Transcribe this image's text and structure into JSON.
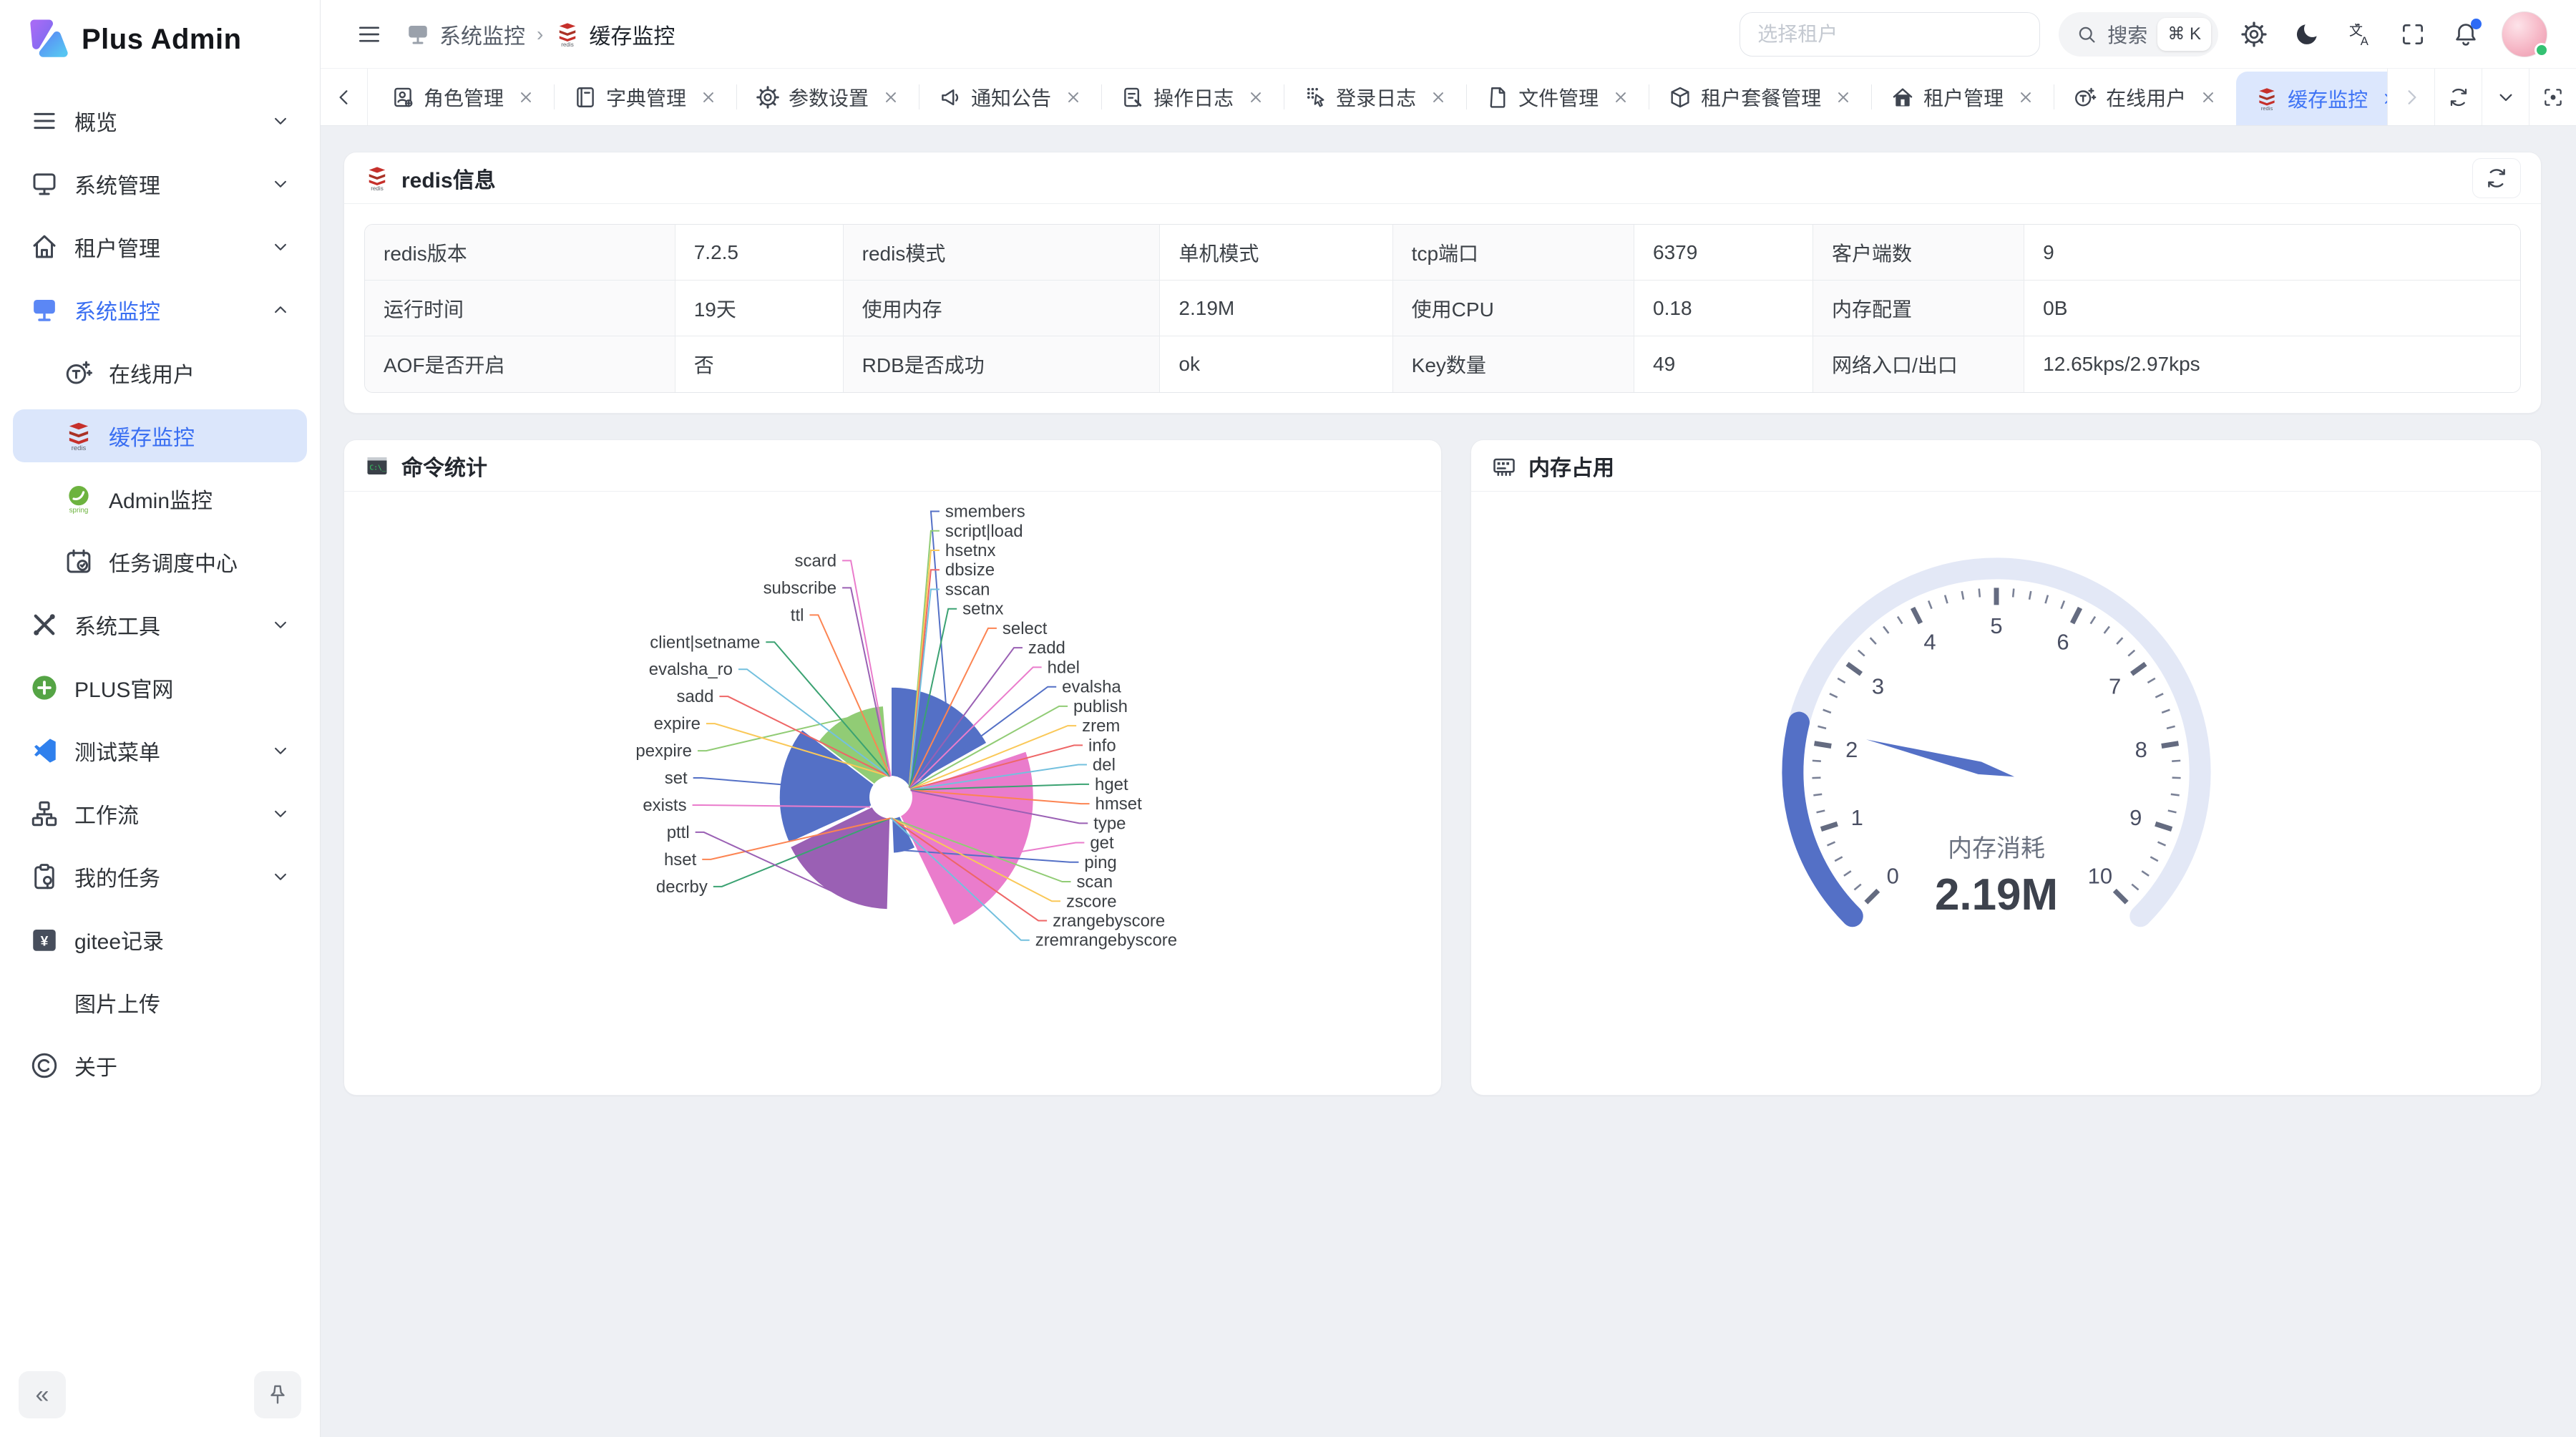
{
  "app": {
    "name": "Plus Admin"
  },
  "sidebar": {
    "logo_title": "Plus Admin",
    "items": [
      {
        "label": "概览",
        "icon": "overview-icon",
        "chevron": "down"
      },
      {
        "label": "系统管理",
        "icon": "monitor-icon",
        "chevron": "down"
      },
      {
        "label": "租户管理",
        "icon": "home-icon",
        "chevron": "down"
      },
      {
        "label": "系统监控",
        "icon": "monitor-blue-icon",
        "chevron": "up",
        "active": true
      },
      {
        "label": "在线用户",
        "icon": "online-user-icon",
        "child": true
      },
      {
        "label": "缓存监控",
        "icon": "redis-icon",
        "child": true,
        "selected": true
      },
      {
        "label": "Admin监控",
        "icon": "spring-icon",
        "child": true
      },
      {
        "label": "任务调度中心",
        "icon": "schedule-icon",
        "child": true
      },
      {
        "label": "系统工具",
        "icon": "tools-icon",
        "chevron": "down"
      },
      {
        "label": "PLUS官网",
        "icon": "plus-site-icon"
      },
      {
        "label": "测试菜单",
        "icon": "vscode-icon",
        "chevron": "down"
      },
      {
        "label": "工作流",
        "icon": "workflow-icon",
        "chevron": "down"
      },
      {
        "label": "我的任务",
        "icon": "my-tasks-icon",
        "chevron": "down"
      },
      {
        "label": "gitee记录",
        "icon": "gitee-icon"
      },
      {
        "label": "图片上传",
        "icon": null
      },
      {
        "label": "关于",
        "icon": "about-icon"
      }
    ],
    "collapse_glyph": "«"
  },
  "header": {
    "breadcrumb": [
      {
        "label": "系统监控",
        "icon": "monitor-gray-icon"
      },
      {
        "label": "缓存监控",
        "icon": "redis-icon"
      }
    ],
    "tenant_placeholder": "选择租户",
    "search_label": "搜索",
    "search_shortcut": "⌘ K"
  },
  "tabbar": {
    "tabs": [
      {
        "label": "角色管理",
        "icon": "role-icon"
      },
      {
        "label": "字典管理",
        "icon": "dict-icon"
      },
      {
        "label": "参数设置",
        "icon": "gear-icon"
      },
      {
        "label": "通知公告",
        "icon": "notice-icon"
      },
      {
        "label": "操作日志",
        "icon": "op-log-icon"
      },
      {
        "label": "登录日志",
        "icon": "login-log-icon"
      },
      {
        "label": "文件管理",
        "icon": "file-icon"
      },
      {
        "label": "租户套餐管理",
        "icon": "package-icon"
      },
      {
        "label": "租户管理",
        "icon": "tenant-icon"
      },
      {
        "label": "在线用户",
        "icon": "online-user-icon"
      },
      {
        "label": "缓存监控",
        "icon": "redis-icon",
        "active": true
      }
    ]
  },
  "redis_info": {
    "title": "redis信息",
    "rows": [
      [
        {
          "label": "redis版本",
          "value": "7.2.5"
        },
        {
          "label": "redis模式",
          "value": "单机模式"
        },
        {
          "label": "tcp端口",
          "value": "6379"
        },
        {
          "label": "客户端数",
          "value": "9"
        }
      ],
      [
        {
          "label": "运行时间",
          "value": "19天"
        },
        {
          "label": "使用内存",
          "value": "2.19M"
        },
        {
          "label": "使用CPU",
          "value": "0.18"
        },
        {
          "label": "内存配置",
          "value": "0B"
        }
      ],
      [
        {
          "label": "AOF是否开启",
          "value": "否"
        },
        {
          "label": "RDB是否成功",
          "value": "ok"
        },
        {
          "label": "Key数量",
          "value": "49"
        },
        {
          "label": "网络入口/出口",
          "value": "12.65kps/2.97kps"
        }
      ]
    ]
  },
  "panels": {
    "commands_title": "命令统计",
    "memory_title": "内存占用"
  },
  "chart_data": [
    {
      "type": "pie",
      "variant": "nightingale-rose",
      "title": "命令统计",
      "legend_position": "none",
      "palette": [
        "#5470c6",
        "#91cc75",
        "#fac858",
        "#ee6666",
        "#73c0de",
        "#3ba272",
        "#fc8452",
        "#9a60b4",
        "#ea7ccc"
      ],
      "data": [
        {
          "name": "smembers",
          "value": 1200
        },
        {
          "name": "script|load",
          "value": 12
        },
        {
          "name": "hsetnx",
          "value": 12
        },
        {
          "name": "dbsize",
          "value": 14
        },
        {
          "name": "sscan",
          "value": 12
        },
        {
          "name": "setnx",
          "value": 12
        },
        {
          "name": "select",
          "value": 14
        },
        {
          "name": "zadd",
          "value": 12
        },
        {
          "name": "hdel",
          "value": 14
        },
        {
          "name": "evalsha",
          "value": 14
        },
        {
          "name": "publish",
          "value": 12
        },
        {
          "name": "zrem",
          "value": 12
        },
        {
          "name": "info",
          "value": 16
        },
        {
          "name": "del",
          "value": 14
        },
        {
          "name": "hget",
          "value": 14
        },
        {
          "name": "hmset",
          "value": 12
        },
        {
          "name": "type",
          "value": 12
        },
        {
          "name": "get",
          "value": 1640
        },
        {
          "name": "ping",
          "value": 470
        },
        {
          "name": "scan",
          "value": 14
        },
        {
          "name": "zscore",
          "value": 12
        },
        {
          "name": "zrangebyscore",
          "value": 12
        },
        {
          "name": "zremrangebyscore",
          "value": 12
        },
        {
          "name": "decrby",
          "value": 12
        },
        {
          "name": "hset",
          "value": 14
        },
        {
          "name": "pttl",
          "value": 1230
        },
        {
          "name": "exists",
          "value": 40
        },
        {
          "name": "set",
          "value": 1220
        },
        {
          "name": "pexpire",
          "value": 950
        },
        {
          "name": "expire",
          "value": 14
        },
        {
          "name": "sadd",
          "value": 12
        },
        {
          "name": "evalsha_ro",
          "value": 12
        },
        {
          "name": "client|setname",
          "value": 12
        },
        {
          "name": "ttl",
          "value": 14
        },
        {
          "name": "subscribe",
          "value": 12
        },
        {
          "name": "scard",
          "value": 14
        }
      ]
    },
    {
      "type": "gauge",
      "title": "内存占用",
      "label": "内存消耗",
      "value": 2.19,
      "display_value": "2.19M",
      "min": 0,
      "max": 10,
      "tick_labels": [
        "0",
        "1",
        "2",
        "3",
        "4",
        "5",
        "6",
        "7",
        "8",
        "9",
        "10"
      ],
      "color": "#5470c6",
      "track_color": "#e3e8f6"
    }
  ]
}
